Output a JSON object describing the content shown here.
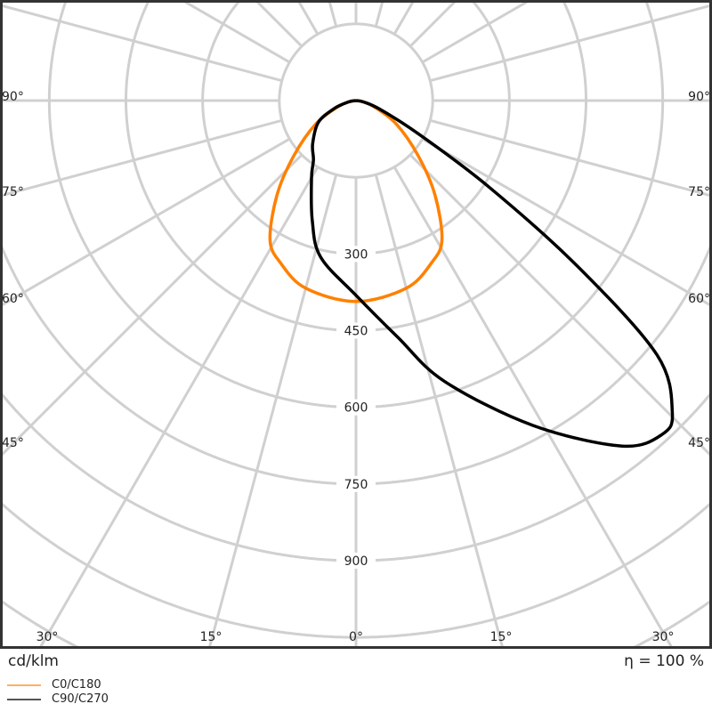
{
  "chart_data": {
    "type": "polar-line",
    "unit_label": "cd/klm",
    "efficiency_label": "η = 100 %",
    "radial_ticks": [
      300,
      450,
      600,
      750,
      900
    ],
    "radial_grid_step": 150,
    "angle_grid_step_deg": 15,
    "angle_labels": {
      "bottom": [
        "30°",
        "15°",
        "0°",
        "15°",
        "30°"
      ],
      "left": [
        "90°",
        "75°",
        "60°",
        "45°"
      ],
      "right": [
        "90°",
        "75°",
        "60°",
        "45°"
      ]
    },
    "grid": true,
    "legend_position": "bottom-left",
    "series": [
      {
        "name": "C0/C180",
        "color": "#ff8000",
        "angles": [
          -90,
          -80,
          -71,
          -60,
          -48.5,
          -40,
          -31.7,
          -25,
          -15,
          0,
          15,
          25,
          31.7,
          40,
          48.5,
          60,
          71,
          80,
          90
        ],
        "values": [
          0,
          12,
          37,
          90,
          162,
          240,
          320,
          350,
          380,
          393,
          380,
          350,
          320,
          240,
          162,
          90,
          37,
          12,
          0
        ]
      },
      {
        "name": "C90/C270",
        "color": "#000000",
        "angles": [
          -90,
          -80,
          -70,
          -60,
          -45,
          -35.6,
          -30,
          -20,
          -12.7,
          0,
          10,
          17.5,
          28.6,
          37.6,
          42.5,
          45.4,
          49.8,
          53.2,
          57,
          62,
          70,
          80,
          90
        ],
        "values": [
          0,
          15,
          45,
          85,
          120,
          143,
          174,
          250,
          314,
          381,
          470,
          576,
          724,
          853,
          886,
          869,
          771,
          541,
          309,
          137,
          50,
          15,
          0
        ]
      }
    ]
  }
}
